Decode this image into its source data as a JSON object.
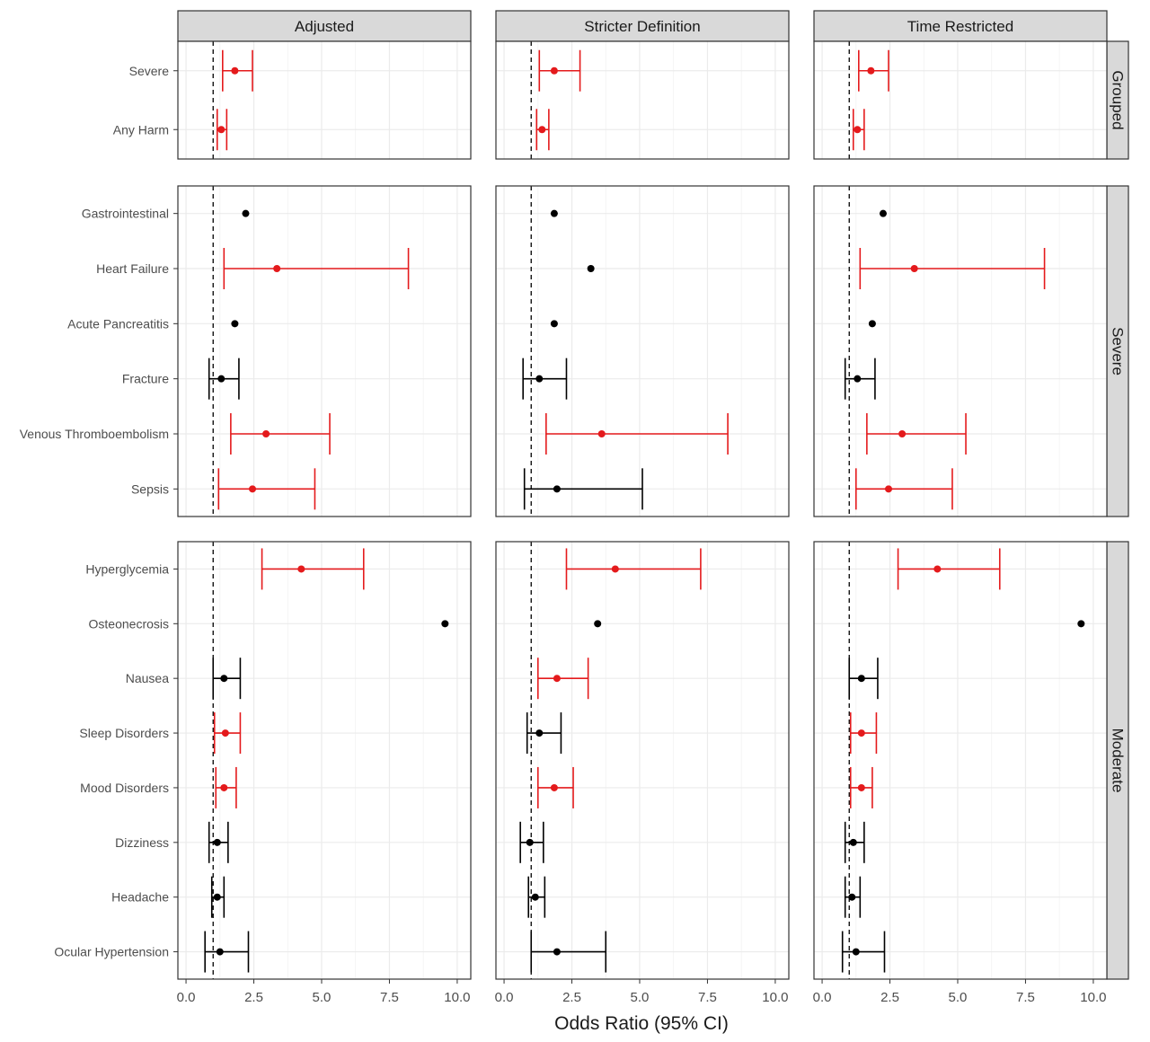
{
  "chart_data": {
    "type": "forest",
    "xlabel": "Odds Ratio (95% CI)",
    "xlim": [
      -0.3,
      10.5
    ],
    "xticks": [
      0,
      2.5,
      5,
      7.5,
      10
    ],
    "xtick_labels": [
      "0.0",
      "2.5",
      "5.0",
      "7.5",
      "10.0"
    ],
    "reference_line": 1,
    "grid": true,
    "colors": {
      "significant": "#e41a1c",
      "not_significant": "#000000",
      "strip_bg": "#d9d9d9",
      "grid": "#ebebeb"
    },
    "columns": [
      "Adjusted",
      "Stricter Definition",
      "Time Restricted"
    ],
    "rows": [
      {
        "name": "Grouped",
        "outcomes": [
          "Severe",
          "Any Harm"
        ],
        "data": {
          "Adjusted": [
            {
              "or": 1.8,
              "lo": 1.35,
              "hi": 2.45,
              "sig": true
            },
            {
              "or": 1.3,
              "lo": 1.15,
              "hi": 1.5,
              "sig": true
            }
          ],
          "Stricter Definition": [
            {
              "or": 1.85,
              "lo": 1.3,
              "hi": 2.8,
              "sig": true
            },
            {
              "or": 1.4,
              "lo": 1.2,
              "hi": 1.65,
              "sig": true
            }
          ],
          "Time Restricted": [
            {
              "or": 1.8,
              "lo": 1.35,
              "hi": 2.45,
              "sig": true
            },
            {
              "or": 1.3,
              "lo": 1.15,
              "hi": 1.55,
              "sig": true
            }
          ]
        }
      },
      {
        "name": "Severe",
        "outcomes": [
          "Gastrointestinal",
          "Heart Failure",
          "Acute Pancreatitis",
          "Fracture",
          "Venous Thromboembolism",
          "Sepsis"
        ],
        "data": {
          "Adjusted": [
            {
              "or": 2.2,
              "lo": null,
              "hi": null,
              "sig": false
            },
            {
              "or": 3.35,
              "lo": 1.4,
              "hi": 8.2,
              "sig": true
            },
            {
              "or": 1.8,
              "lo": null,
              "hi": null,
              "sig": false
            },
            {
              "or": 1.3,
              "lo": 0.85,
              "hi": 1.95,
              "sig": false
            },
            {
              "or": 2.95,
              "lo": 1.65,
              "hi": 5.3,
              "sig": true
            },
            {
              "or": 2.45,
              "lo": 1.2,
              "hi": 4.75,
              "sig": true
            }
          ],
          "Stricter Definition": [
            {
              "or": 1.85,
              "lo": null,
              "hi": null,
              "sig": false
            },
            {
              "or": 3.2,
              "lo": null,
              "hi": null,
              "sig": false
            },
            {
              "or": 1.85,
              "lo": null,
              "hi": null,
              "sig": false
            },
            {
              "or": 1.3,
              "lo": 0.7,
              "hi": 2.3,
              "sig": false
            },
            {
              "or": 3.6,
              "lo": 1.55,
              "hi": 8.25,
              "sig": true
            },
            {
              "or": 1.95,
              "lo": 0.75,
              "hi": 5.1,
              "sig": false
            }
          ],
          "Time Restricted": [
            {
              "or": 2.25,
              "lo": null,
              "hi": null,
              "sig": false
            },
            {
              "or": 3.4,
              "lo": 1.4,
              "hi": 8.2,
              "sig": true
            },
            {
              "or": 1.85,
              "lo": null,
              "hi": null,
              "sig": false
            },
            {
              "or": 1.3,
              "lo": 0.85,
              "hi": 1.95,
              "sig": false
            },
            {
              "or": 2.95,
              "lo": 1.65,
              "hi": 5.3,
              "sig": true
            },
            {
              "or": 2.45,
              "lo": 1.25,
              "hi": 4.8,
              "sig": true
            }
          ]
        }
      },
      {
        "name": "Moderate",
        "outcomes": [
          "Hyperglycemia",
          "Osteonecrosis",
          "Nausea",
          "Sleep Disorders",
          "Mood Disorders",
          "Dizziness",
          "Headache",
          "Ocular Hypertension"
        ],
        "data": {
          "Adjusted": [
            {
              "or": 4.25,
              "lo": 2.8,
              "hi": 6.55,
              "sig": true
            },
            {
              "or": 9.55,
              "lo": null,
              "hi": null,
              "sig": false
            },
            {
              "or": 1.4,
              "lo": 1.0,
              "hi": 2.0,
              "sig": false
            },
            {
              "or": 1.45,
              "lo": 1.05,
              "hi": 2.0,
              "sig": true
            },
            {
              "or": 1.4,
              "lo": 1.1,
              "hi": 1.85,
              "sig": true
            },
            {
              "or": 1.15,
              "lo": 0.85,
              "hi": 1.55,
              "sig": false
            },
            {
              "or": 1.15,
              "lo": 0.95,
              "hi": 1.4,
              "sig": false
            },
            {
              "or": 1.25,
              "lo": 0.7,
              "hi": 2.3,
              "sig": false
            }
          ],
          "Stricter Definition": [
            {
              "or": 4.1,
              "lo": 2.3,
              "hi": 7.25,
              "sig": true
            },
            {
              "or": 3.45,
              "lo": null,
              "hi": null,
              "sig": false
            },
            {
              "or": 1.95,
              "lo": 1.25,
              "hi": 3.1,
              "sig": true
            },
            {
              "or": 1.3,
              "lo": 0.85,
              "hi": 2.1,
              "sig": false
            },
            {
              "or": 1.85,
              "lo": 1.25,
              "hi": 2.55,
              "sig": true
            },
            {
              "or": 0.95,
              "lo": 0.6,
              "hi": 1.45,
              "sig": false
            },
            {
              "or": 1.15,
              "lo": 0.9,
              "hi": 1.5,
              "sig": false
            },
            {
              "or": 1.95,
              "lo": 1.0,
              "hi": 3.75,
              "sig": false
            }
          ],
          "Time Restricted": [
            {
              "or": 4.25,
              "lo": 2.8,
              "hi": 6.55,
              "sig": true
            },
            {
              "or": 9.55,
              "lo": null,
              "hi": null,
              "sig": false
            },
            {
              "or": 1.45,
              "lo": 1.0,
              "hi": 2.05,
              "sig": false
            },
            {
              "or": 1.45,
              "lo": 1.05,
              "hi": 2.0,
              "sig": true
            },
            {
              "or": 1.45,
              "lo": 1.05,
              "hi": 1.85,
              "sig": true
            },
            {
              "or": 1.15,
              "lo": 0.85,
              "hi": 1.55,
              "sig": false
            },
            {
              "or": 1.1,
              "lo": 0.85,
              "hi": 1.4,
              "sig": false
            },
            {
              "or": 1.25,
              "lo": 0.75,
              "hi": 2.3,
              "sig": false
            }
          ]
        }
      }
    ]
  }
}
